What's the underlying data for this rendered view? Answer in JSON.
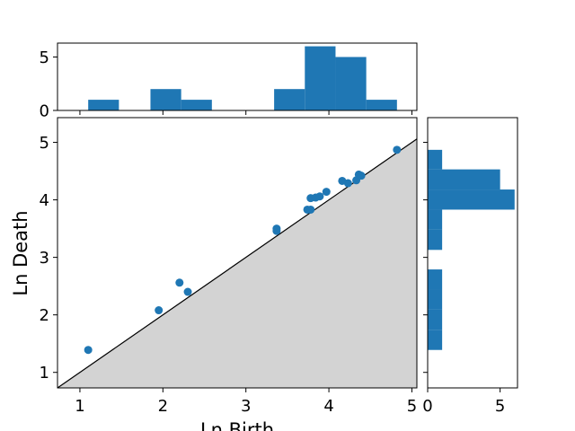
{
  "chart_data": [
    {
      "panel": "main",
      "type": "scatter",
      "xlabel": "Ln Birth",
      "ylabel": "Ln Death",
      "xlim": [
        0.73,
        5.06
      ],
      "ylim": [
        0.73,
        5.43
      ],
      "xticks": [
        1,
        2,
        3,
        4,
        5
      ],
      "yticks": [
        1,
        2,
        3,
        4,
        5
      ],
      "diagonal_line": true,
      "shade_below_diagonal": "#d3d3d3",
      "marker_color": "#1f77b4",
      "points": [
        [
          1.1,
          1.39
        ],
        [
          1.95,
          2.08
        ],
        [
          2.2,
          2.56
        ],
        [
          2.3,
          2.4
        ],
        [
          3.37,
          3.5
        ],
        [
          3.37,
          3.46
        ],
        [
          3.74,
          3.83
        ],
        [
          3.78,
          3.83
        ],
        [
          3.78,
          4.03
        ],
        [
          3.84,
          4.04
        ],
        [
          3.89,
          4.06
        ],
        [
          3.97,
          4.14
        ],
        [
          4.16,
          4.33
        ],
        [
          4.23,
          4.29
        ],
        [
          4.33,
          4.34
        ],
        [
          4.36,
          4.44
        ],
        [
          4.39,
          4.42
        ],
        [
          4.82,
          4.87
        ]
      ]
    },
    {
      "panel": "top",
      "type": "histogram",
      "orientation": "vertical",
      "bar_color": "#1f77b4",
      "yticks": [
        0,
        5
      ],
      "ylim": [
        0,
        6.3
      ],
      "bins": [
        {
          "from": 1.1,
          "to": 1.47,
          "count": 1
        },
        {
          "from": 1.47,
          "to": 1.85,
          "count": 0
        },
        {
          "from": 1.85,
          "to": 2.22,
          "count": 2
        },
        {
          "from": 2.22,
          "to": 2.59,
          "count": 1
        },
        {
          "from": 2.59,
          "to": 2.97,
          "count": 0
        },
        {
          "from": 2.97,
          "to": 3.34,
          "count": 0
        },
        {
          "from": 3.34,
          "to": 3.71,
          "count": 2
        },
        {
          "from": 3.71,
          "to": 4.08,
          "count": 6
        },
        {
          "from": 4.08,
          "to": 4.45,
          "count": 5
        },
        {
          "from": 4.45,
          "to": 4.82,
          "count": 1
        }
      ]
    },
    {
      "panel": "right",
      "type": "histogram",
      "orientation": "horizontal",
      "bar_color": "#1f77b4",
      "xticks": [
        0,
        5
      ],
      "xlim": [
        0,
        6.2
      ],
      "bins": [
        {
          "from": 1.39,
          "to": 1.74,
          "count": 1
        },
        {
          "from": 1.74,
          "to": 2.09,
          "count": 1
        },
        {
          "from": 2.09,
          "to": 2.44,
          "count": 1
        },
        {
          "from": 2.44,
          "to": 2.79,
          "count": 1
        },
        {
          "from": 2.79,
          "to": 3.13,
          "count": 0
        },
        {
          "from": 3.13,
          "to": 3.48,
          "count": 1
        },
        {
          "from": 3.48,
          "to": 3.83,
          "count": 1
        },
        {
          "from": 3.83,
          "to": 4.18,
          "count": 6
        },
        {
          "from": 4.18,
          "to": 4.53,
          "count": 5
        },
        {
          "from": 4.53,
          "to": 4.87,
          "count": 1
        }
      ]
    }
  ]
}
